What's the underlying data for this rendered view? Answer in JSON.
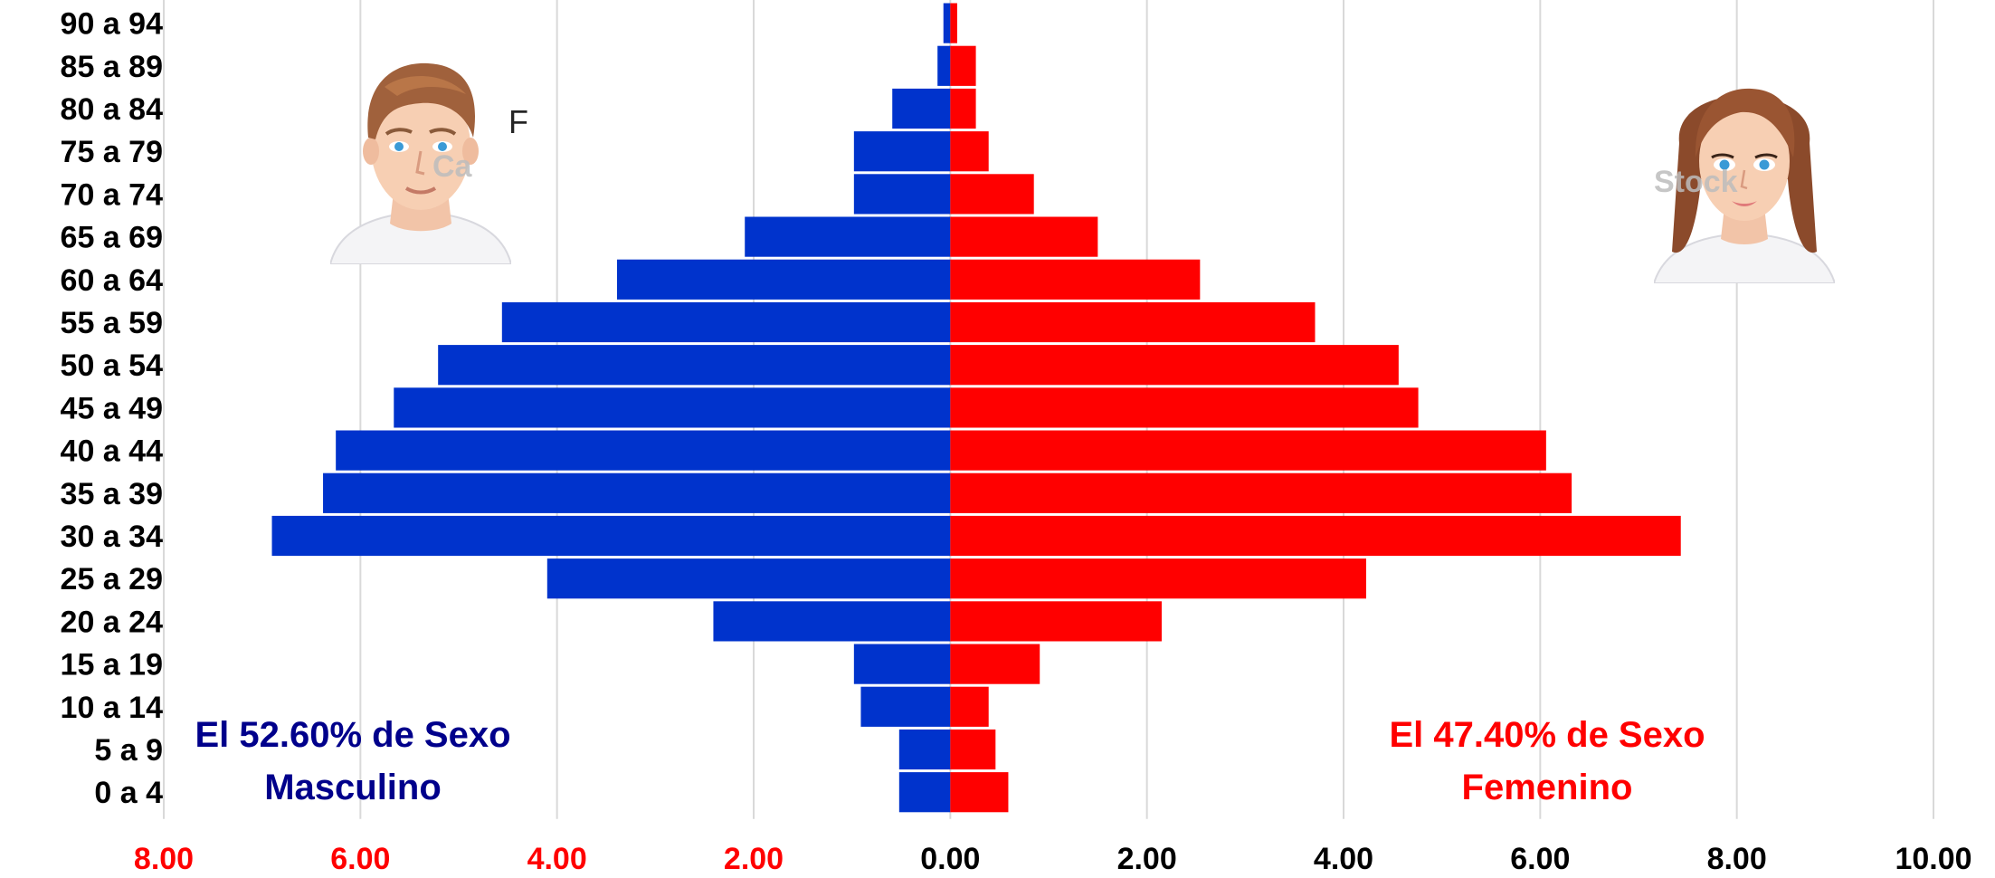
{
  "chart_data": {
    "type": "bar",
    "orientation": "horizontal",
    "layout": "population-pyramid",
    "categories": [
      "90 a 94",
      "85 a 89",
      "80 a 84",
      "75 a 79",
      "70 a 74",
      "65 a 69",
      "60 a 64",
      "55 a 59",
      "50 a 54",
      "45 a 49",
      "40 a 44",
      "35 a 39",
      "30 a 34",
      "25 a 29",
      "20 a 24",
      "15 a 19",
      "10 a 14",
      "5 a 9",
      "0 a 4"
    ],
    "series": [
      {
        "side": "left",
        "color": "#0033cc",
        "values": [
          0.07,
          0.13,
          0.59,
          0.98,
          0.98,
          2.09,
          3.39,
          4.56,
          5.21,
          5.66,
          6.25,
          6.38,
          6.9,
          4.1,
          2.41,
          0.98,
          0.91,
          0.52,
          0.52
        ]
      },
      {
        "side": "right",
        "color": "#ff0000",
        "values": [
          0.07,
          0.26,
          0.26,
          0.39,
          0.85,
          1.5,
          2.54,
          3.71,
          4.56,
          4.76,
          6.06,
          6.32,
          7.43,
          4.23,
          2.15,
          0.91,
          0.39,
          0.46,
          0.59
        ]
      }
    ],
    "xlim": [
      -8,
      10
    ],
    "x_tick_values": [
      -8,
      -6,
      -4,
      -2,
      0,
      2,
      4,
      6,
      8,
      10
    ],
    "x_tick_labels": [
      "8.00",
      "6.00",
      "4.00",
      "2.00",
      "0.00",
      "2.00",
      "4.00",
      "6.00",
      "8.00",
      "10.00"
    ],
    "x_tick_colors": [
      "#ff0000",
      "#ff0000",
      "#ff0000",
      "#ff0000",
      "#000000",
      "#000000",
      "#000000",
      "#000000",
      "#000000",
      "#000000"
    ],
    "grid": true,
    "title": "",
    "xlabel": "",
    "ylabel": ""
  },
  "annotations": {
    "male": {
      "line1": "El 52.60% de Sexo",
      "line2": "Masculino",
      "color": "#00008b"
    },
    "female": {
      "line1": "El 47.40% de Sexo",
      "line2": "Femenino",
      "color": "#ff0000"
    }
  },
  "avatars": {
    "male_icon": "male-avatar-icon",
    "female_icon": "female-avatar-icon",
    "male_watermark": "Ca",
    "male_stray_letter": "F",
    "female_watermark": "Stock"
  }
}
